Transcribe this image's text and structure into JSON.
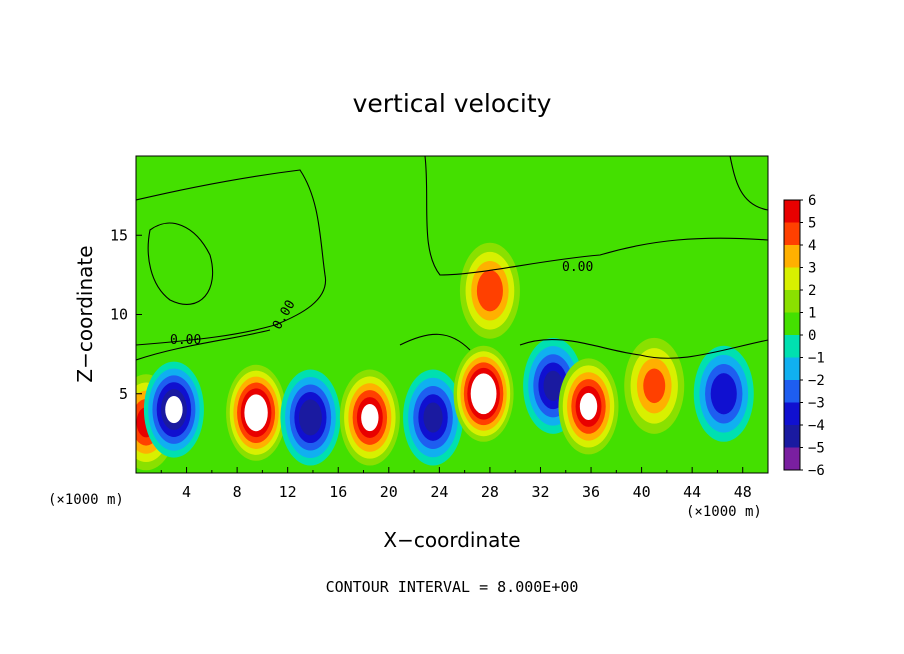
{
  "chart_data": {
    "type": "heatmap",
    "title": "vertical velocity",
    "xlabel": "X−coordinate",
    "ylabel": "Z−coordinate",
    "x_unit": "(×1000 m)",
    "xlim": [
      0,
      50
    ],
    "ylim": [
      0,
      20
    ],
    "x_ticks": [
      "4",
      "8",
      "12",
      "16",
      "20",
      "24",
      "28",
      "32",
      "36",
      "40",
      "44",
      "48"
    ],
    "y_ticks": [
      "5",
      "10",
      "15"
    ],
    "colorbar_ticks": [
      "6",
      "5",
      "4",
      "3",
      "2",
      "1",
      "0",
      "−1",
      "−2",
      "−3",
      "−4",
      "−5",
      "−6"
    ],
    "colorbar_range": [
      -6,
      6
    ],
    "contour_label": "0.00",
    "footer": "CONTOUR INTERVAL = 8.000E+00",
    "colors": {
      "green": "#44e000",
      "positive_high": "#e80000",
      "negative_high": "#1010d0",
      "saturated": "#ffffff"
    },
    "features": [
      {
        "x": 0.8,
        "z": 3.2,
        "w": 4.5
      },
      {
        "x": 3.0,
        "z": 4.0,
        "w": -5.5
      },
      {
        "x": 9.5,
        "z": 3.8,
        "w": 6.5
      },
      {
        "x": 13.8,
        "z": 3.5,
        "w": -5.0
      },
      {
        "x": 18.5,
        "z": 3.5,
        "w": 5.5
      },
      {
        "x": 23.5,
        "z": 3.5,
        "w": -4.5
      },
      {
        "x": 27.5,
        "z": 5.0,
        "w": 7.0
      },
      {
        "x": 28.0,
        "z": 11.5,
        "w": 4.0
      },
      {
        "x": 33.0,
        "z": 5.5,
        "w": -4.5
      },
      {
        "x": 35.8,
        "z": 4.2,
        "w": 5.5
      },
      {
        "x": 41.0,
        "z": 5.5,
        "w": 3.5
      },
      {
        "x": 46.5,
        "z": 5.0,
        "w": -4.0
      }
    ]
  }
}
